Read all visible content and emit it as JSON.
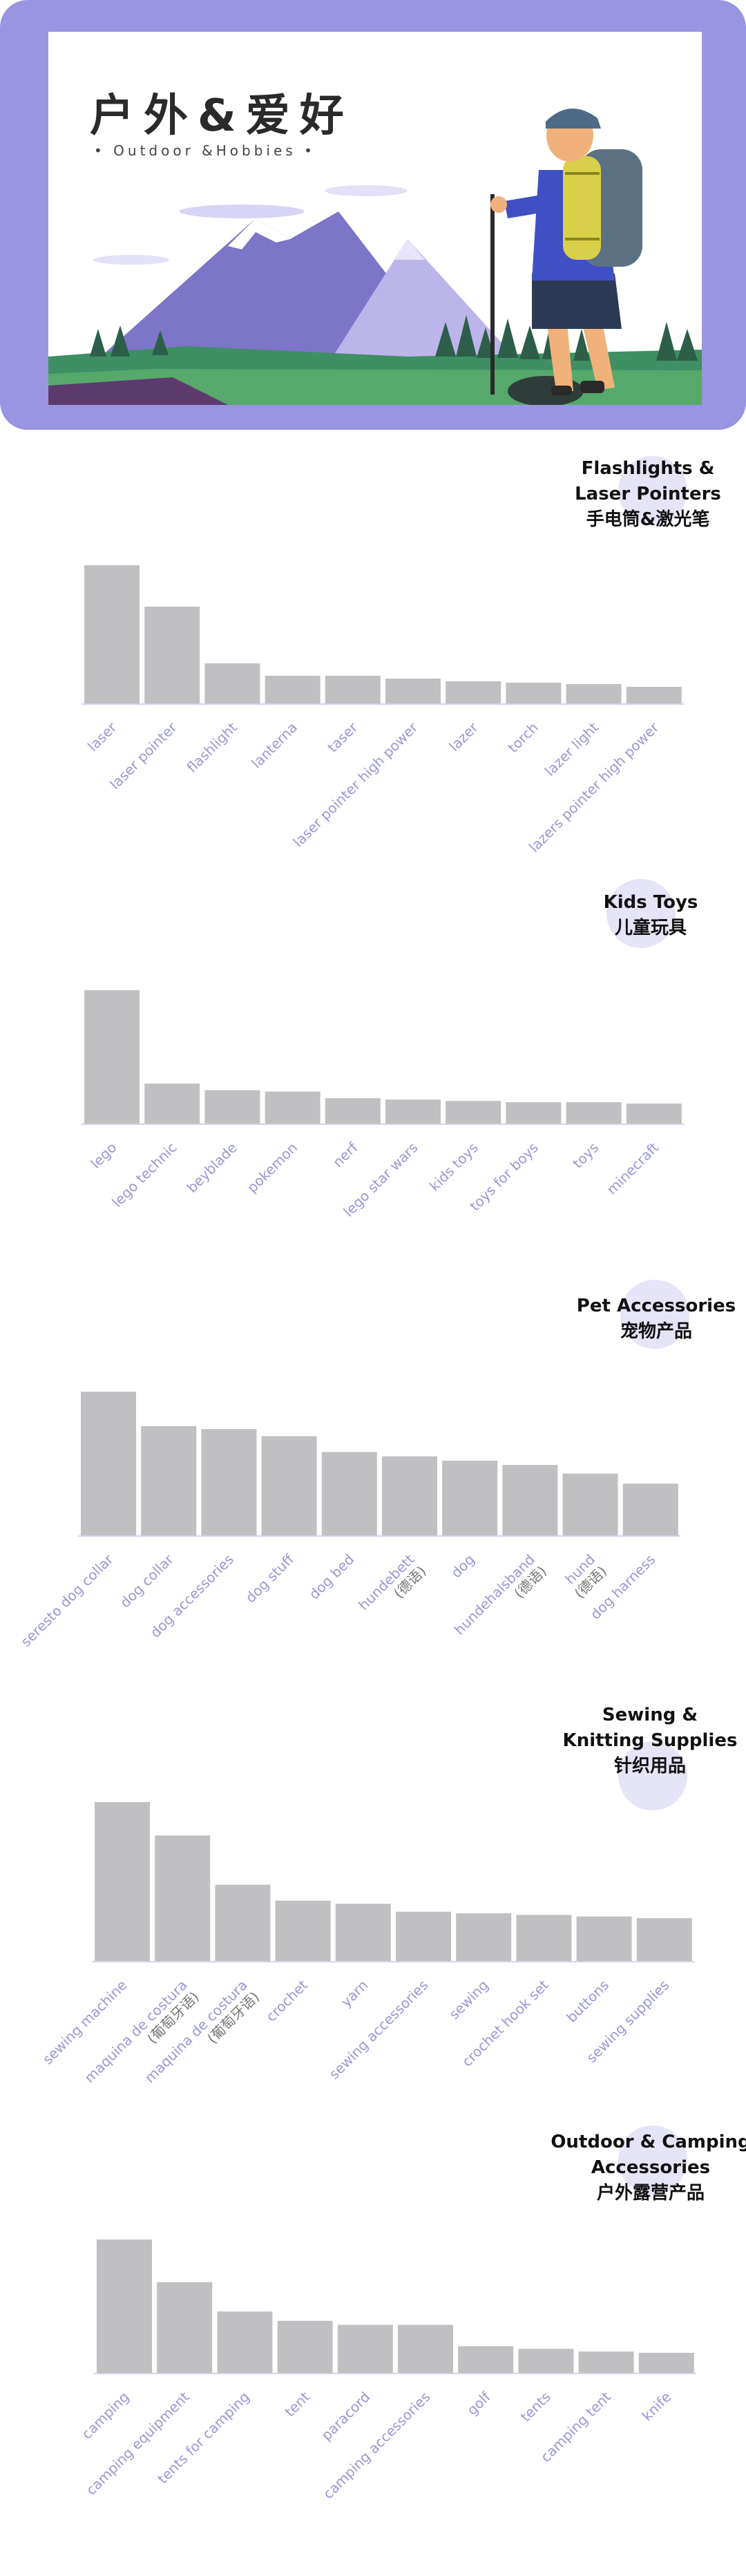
{
  "banner": {
    "title": "户外&爱好",
    "subtitle": "• Outdoor &Hobbies •"
  },
  "colors": {
    "bar": "#c0bfc2",
    "label": "#9a97d6",
    "frame": "#9a95e0",
    "baseline": "#a9a7d6"
  },
  "chart_data": [
    {
      "type": "bar",
      "title": "Flashlights & Laser Pointers 手电筒&激光笔",
      "title_lines": [
        "Flashlights &",
        "Laser Pointers",
        "手电筒&激光笔"
      ],
      "categories": [
        "laser",
        "laser pointer",
        "flashlight",
        "lanterna",
        "taser",
        "laser pointer high power",
        "lazer",
        "torch",
        "lazer light",
        "lazers pointer high power"
      ],
      "values": [
        100,
        70,
        29,
        20,
        20,
        18,
        16,
        15,
        14,
        12
      ],
      "ylim": [
        0,
        100
      ],
      "grid": false
    },
    {
      "type": "bar",
      "title": "Kids Toys 儿童玩具",
      "title_lines": [
        "Kids Toys",
        "儿童玩具"
      ],
      "categories": [
        "lego",
        "lego technic",
        "beyblade",
        "pokemon",
        "nerf",
        "lego star wars",
        "kids toys",
        "toys for boys",
        "toys",
        "minecraft"
      ],
      "values": [
        100,
        30,
        25,
        24,
        19,
        18,
        17,
        16,
        16,
        15
      ],
      "ylim": [
        0,
        100
      ],
      "grid": false
    },
    {
      "type": "bar",
      "title": "Pet Accessories 宠物产品",
      "title_lines": [
        "Pet Accessories",
        "宠物产品"
      ],
      "categories": [
        "seresto dog collar",
        "dog collar",
        "dog accessories",
        "dog stuff",
        "dog bed",
        "hundebett (德语)",
        "dog",
        "hundehalsband (德语)",
        "hund (德语)",
        "dog harness"
      ],
      "values": [
        100,
        76,
        74,
        69,
        58,
        55,
        52,
        49,
        43,
        36
      ],
      "ylim": [
        0,
        100
      ],
      "grid": false
    },
    {
      "type": "bar",
      "title": "Sewing & Knitting Supplies 针织用品",
      "title_lines": [
        "Sewing &",
        "Knitting Supplies",
        "针织用品"
      ],
      "categories": [
        "sewing machine",
        "maquina de costura (葡萄牙语)",
        "maquina de costura (葡萄牙语)",
        "crochet",
        "yarn",
        "sewing accessories",
        "sewing",
        "crochet hook set",
        "buttons",
        "sewing supplies"
      ],
      "values": [
        100,
        79,
        48,
        38,
        36,
        31,
        30,
        29,
        28,
        27
      ],
      "ylim": [
        0,
        100
      ],
      "grid": false
    },
    {
      "type": "bar",
      "title": "Outdoor & Camping Accessories 户外露营产品",
      "title_lines": [
        "Outdoor & Camping",
        "Accessories",
        "户外露营产品"
      ],
      "categories": [
        "camping",
        "camping equipment",
        "tents for camping",
        "tent",
        "paracord",
        "camping accessories",
        "golf",
        "tents",
        "camping tent",
        "knife"
      ],
      "values": [
        100,
        68,
        46,
        39,
        36,
        36,
        20,
        18,
        16,
        15
      ],
      "ylim": [
        0,
        100
      ],
      "grid": false
    }
  ]
}
